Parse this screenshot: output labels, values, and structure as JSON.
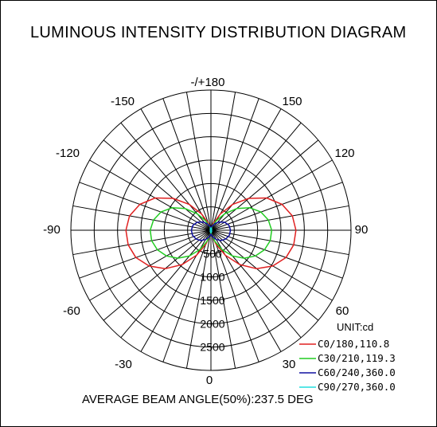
{
  "title": "LUMINOUS INTENSITY DISTRIBUTION DIAGRAM",
  "footer": "AVERAGE BEAM ANGLE(50%):237.5 DEG",
  "chart_data": {
    "type": "polar",
    "unit_label": "UNIT:cd",
    "radial_ticks": [
      "500",
      "1000",
      "1500",
      "2000",
      "2500"
    ],
    "radial_max": 3000,
    "angle_labels": [
      {
        "deg": 0,
        "text": "0"
      },
      {
        "deg": 30,
        "text": "30"
      },
      {
        "deg": 60,
        "text": "60"
      },
      {
        "deg": 90,
        "text": "90"
      },
      {
        "deg": 120,
        "text": "120"
      },
      {
        "deg": 150,
        "text": "150"
      },
      {
        "deg": 180,
        "text": "-/+180"
      },
      {
        "deg": -150,
        "text": "-150"
      },
      {
        "deg": -120,
        "text": "-120"
      },
      {
        "deg": -90,
        "text": "-90"
      },
      {
        "deg": -60,
        "text": "-60"
      },
      {
        "deg": -30,
        "text": "-30"
      }
    ],
    "grid": true,
    "legend_position": "bottom-right",
    "series": [
      {
        "name": "C0/180,110.8",
        "color": "#e02020",
        "angles": [
          0,
          10,
          20,
          30,
          40,
          50,
          60,
          70,
          80,
          90,
          100,
          110,
          120,
          130,
          140,
          150,
          160,
          170,
          180
        ],
        "values": [
          40,
          120,
          320,
          620,
          960,
          1280,
          1530,
          1710,
          1800,
          1820,
          1770,
          1620,
          1380,
          1060,
          720,
          400,
          160,
          50,
          20
        ]
      },
      {
        "name": "C30/210,119.3",
        "color": "#22cc22",
        "angles": [
          0,
          10,
          20,
          30,
          40,
          50,
          60,
          70,
          80,
          90,
          100,
          110,
          120,
          130,
          140,
          150,
          160,
          170,
          180
        ],
        "values": [
          40,
          110,
          260,
          480,
          720,
          930,
          1100,
          1220,
          1290,
          1300,
          1250,
          1140,
          960,
          720,
          460,
          240,
          100,
          40,
          20
        ]
      },
      {
        "name": "C60/240,360.0",
        "color": "#1010a0",
        "angles": [
          0,
          15,
          30,
          45,
          60,
          75,
          90,
          105,
          120,
          135,
          150,
          165,
          180
        ],
        "values": [
          80,
          150,
          230,
          310,
          370,
          410,
          420,
          400,
          340,
          250,
          160,
          90,
          60
        ]
      },
      {
        "name": "C90/270,360.0",
        "color": "#22dddd",
        "angles": [
          0,
          15,
          30,
          45,
          60,
          75,
          90,
          105,
          120,
          135,
          150,
          165,
          180
        ],
        "values": [
          50,
          40,
          30,
          20,
          15,
          10,
          10,
          10,
          15,
          20,
          30,
          40,
          50
        ]
      }
    ]
  }
}
